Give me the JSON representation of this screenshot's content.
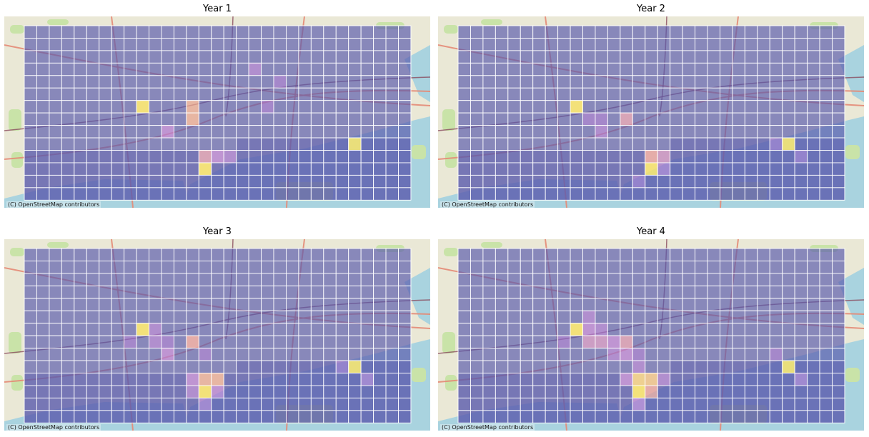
{
  "attribution": "(C) OpenStreetMap contributors",
  "colors": {
    "land": "#eae8d6",
    "water": "#a9d3df",
    "park": "#c9e3a8",
    "road_major": "#e48a76",
    "road_minor": "#ffffff",
    "railway": "#8a4b5e",
    "grid_line": "#ffffff",
    "cell_base": "#5a5aac",
    "cell_low": "#7b5fc0",
    "cell_mid": "#b07ad0",
    "cell_high": "#e39a9a",
    "cell_peak": "#f5df6a"
  },
  "grid": {
    "cols": 31,
    "rows": 14
  },
  "panels": [
    {
      "title": "Year 1",
      "hotspots": [
        {
          "c": 9,
          "r": 6,
          "v": 1.0
        },
        {
          "c": 13,
          "r": 6,
          "v": 0.6
        },
        {
          "c": 13,
          "r": 7,
          "v": 0.6
        },
        {
          "c": 11,
          "r": 8,
          "v": 0.4
        },
        {
          "c": 18,
          "r": 3,
          "v": 0.35
        },
        {
          "c": 20,
          "r": 4,
          "v": 0.3
        },
        {
          "c": 19,
          "r": 6,
          "v": 0.3
        },
        {
          "c": 14,
          "r": 10,
          "v": 0.5
        },
        {
          "c": 15,
          "r": 10,
          "v": 0.4
        },
        {
          "c": 16,
          "r": 10,
          "v": 0.35
        },
        {
          "c": 14,
          "r": 11,
          "v": 1.0
        },
        {
          "c": 26,
          "r": 9,
          "v": 1.0
        }
      ]
    },
    {
      "title": "Year 2",
      "hotspots": [
        {
          "c": 9,
          "r": 6,
          "v": 1.0
        },
        {
          "c": 13,
          "r": 7,
          "v": 0.5
        },
        {
          "c": 11,
          "r": 8,
          "v": 0.35
        },
        {
          "c": 10,
          "r": 7,
          "v": 0.3
        },
        {
          "c": 11,
          "r": 7,
          "v": 0.3
        },
        {
          "c": 15,
          "r": 10,
          "v": 0.55
        },
        {
          "c": 16,
          "r": 10,
          "v": 0.45
        },
        {
          "c": 15,
          "r": 11,
          "v": 1.0
        },
        {
          "c": 16,
          "r": 11,
          "v": 0.35
        },
        {
          "c": 14,
          "r": 12,
          "v": 0.3
        },
        {
          "c": 26,
          "r": 9,
          "v": 1.0
        },
        {
          "c": 25,
          "r": 9,
          "v": 0.3
        },
        {
          "c": 27,
          "r": 10,
          "v": 0.3
        }
      ]
    },
    {
      "title": "Year 3",
      "hotspots": [
        {
          "c": 9,
          "r": 6,
          "v": 1.0
        },
        {
          "c": 10,
          "r": 6,
          "v": 0.35
        },
        {
          "c": 10,
          "r": 7,
          "v": 0.35
        },
        {
          "c": 11,
          "r": 7,
          "v": 0.3
        },
        {
          "c": 8,
          "r": 7,
          "v": 0.3
        },
        {
          "c": 11,
          "r": 8,
          "v": 0.4
        },
        {
          "c": 13,
          "r": 7,
          "v": 0.55
        },
        {
          "c": 14,
          "r": 8,
          "v": 0.3
        },
        {
          "c": 14,
          "r": 10,
          "v": 0.6
        },
        {
          "c": 15,
          "r": 10,
          "v": 0.6
        },
        {
          "c": 13,
          "r": 10,
          "v": 0.4
        },
        {
          "c": 14,
          "r": 11,
          "v": 0.9
        },
        {
          "c": 15,
          "r": 11,
          "v": 0.4
        },
        {
          "c": 13,
          "r": 11,
          "v": 0.35
        },
        {
          "c": 14,
          "r": 12,
          "v": 0.35
        },
        {
          "c": 26,
          "r": 9,
          "v": 1.0
        },
        {
          "c": 25,
          "r": 9,
          "v": 0.3
        },
        {
          "c": 27,
          "r": 10,
          "v": 0.35
        }
      ]
    },
    {
      "title": "Year 4",
      "hotspots": [
        {
          "c": 9,
          "r": 6,
          "v": 0.85
        },
        {
          "c": 10,
          "r": 5,
          "v": 0.35
        },
        {
          "c": 10,
          "r": 6,
          "v": 0.4
        },
        {
          "c": 11,
          "r": 6,
          "v": 0.35
        },
        {
          "c": 10,
          "r": 7,
          "v": 0.45
        },
        {
          "c": 11,
          "r": 7,
          "v": 0.45
        },
        {
          "c": 12,
          "r": 7,
          "v": 0.4
        },
        {
          "c": 13,
          "r": 7,
          "v": 0.5
        },
        {
          "c": 8,
          "r": 7,
          "v": 0.3
        },
        {
          "c": 12,
          "r": 8,
          "v": 0.35
        },
        {
          "c": 13,
          "r": 8,
          "v": 0.4
        },
        {
          "c": 14,
          "r": 8,
          "v": 0.3
        },
        {
          "c": 14,
          "r": 9,
          "v": 0.35
        },
        {
          "c": 14,
          "r": 10,
          "v": 0.75
        },
        {
          "c": 15,
          "r": 10,
          "v": 0.7
        },
        {
          "c": 13,
          "r": 10,
          "v": 0.4
        },
        {
          "c": 14,
          "r": 11,
          "v": 1.0
        },
        {
          "c": 15,
          "r": 11,
          "v": 0.55
        },
        {
          "c": 16,
          "r": 10,
          "v": 0.35
        },
        {
          "c": 14,
          "r": 12,
          "v": 0.4
        },
        {
          "c": 26,
          "r": 9,
          "v": 0.85
        },
        {
          "c": 25,
          "r": 8,
          "v": 0.3
        },
        {
          "c": 27,
          "r": 10,
          "v": 0.35
        }
      ]
    }
  ]
}
